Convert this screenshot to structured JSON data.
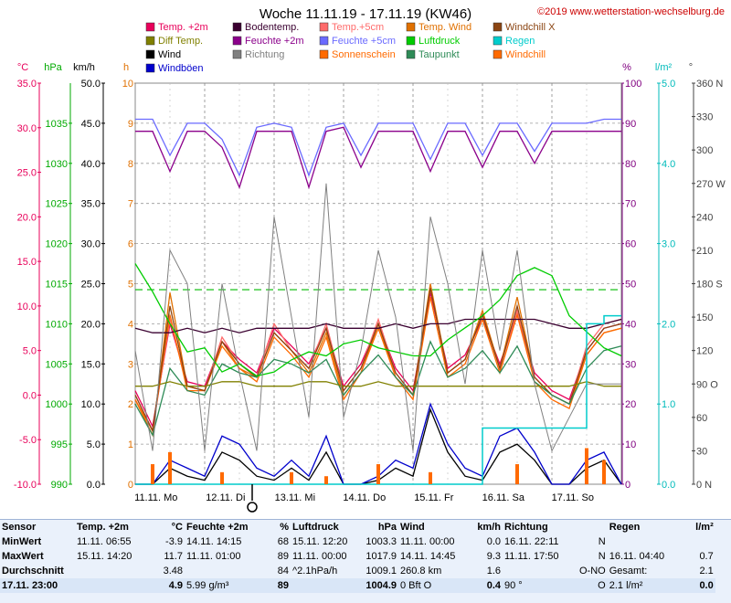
{
  "header": {
    "title": "Woche 11.11.19 - 17.11.19 (KW46)",
    "copyright": "©2019 www.wetterstation-wechselburg.de"
  },
  "legend": [
    {
      "label": "Temp. +2m",
      "color": "#e8005a"
    },
    {
      "label": "Bodentemp.",
      "color": "#3a0030"
    },
    {
      "label": "Temp.+5cm",
      "color": "#ff6b6b"
    },
    {
      "label": "Temp. Wind",
      "color": "#e07000"
    },
    {
      "label": "Windchill X",
      "color": "#8b4513"
    },
    {
      "label": "Diff Temp.",
      "color": "#808000"
    },
    {
      "label": "Feuchte +2m",
      "color": "#8b008b"
    },
    {
      "label": "Feuchte +5cm",
      "color": "#6a6aff"
    },
    {
      "label": "Luftdruck",
      "color": "#00cc00"
    },
    {
      "label": "Regen",
      "color": "#00cccc"
    },
    {
      "label": "Wind",
      "color": "#000000"
    },
    {
      "label": "Richtung",
      "color": "#808080"
    },
    {
      "label": "Sonnenschein",
      "color": "#ff6a00"
    },
    {
      "label": "Taupunkt",
      "color": "#2e8b57"
    },
    {
      "label": "Windchill",
      "color": "#ff6a00"
    },
    {
      "label": "Windböen",
      "color": "#0000cc"
    }
  ],
  "axes": {
    "temp": {
      "unit": "°C",
      "ticks": [
        "35.0",
        "30.0",
        "25.0",
        "20.0",
        "15.0",
        "10.0",
        "5.0",
        "0.0",
        "-5.0",
        "-10.0"
      ],
      "range": [
        -10,
        35
      ],
      "color": "#e8005a"
    },
    "pressure": {
      "unit": "hPa",
      "ticks": [
        "1035",
        "1030",
        "1025",
        "1020",
        "1015",
        "1010",
        "1005",
        "1000",
        "995",
        "990"
      ],
      "range": [
        990,
        1040
      ],
      "color": "#00aa00"
    },
    "wind": {
      "unit": "km/h",
      "ticks": [
        "50.0",
        "45.0",
        "40.0",
        "35.0",
        "30.0",
        "25.0",
        "20.0",
        "15.0",
        "10.0",
        "5.0",
        "0.0"
      ],
      "range": [
        0,
        50
      ],
      "color": "#000000"
    },
    "sun": {
      "unit": "h",
      "ticks": [
        "10",
        "9",
        "8",
        "7",
        "6",
        "5",
        "4",
        "3",
        "2",
        "1",
        "0"
      ],
      "range": [
        0,
        10
      ],
      "color": "#e07000"
    },
    "humidity": {
      "unit": "%",
      "ticks": [
        "100",
        "90",
        "80",
        "70",
        "60",
        "50",
        "40",
        "30",
        "20",
        "10",
        "0"
      ],
      "range": [
        0,
        100
      ],
      "color": "#800080"
    },
    "rain": {
      "unit": "l/m²",
      "ticks": [
        "5.0",
        "4.0",
        "3.0",
        "2.0",
        "1.0",
        "0.0"
      ],
      "range": [
        0,
        5
      ],
      "color": "#00bbbb"
    },
    "direction": {
      "unit": "°",
      "ticks": [
        "360 N",
        "330",
        "300",
        "270 W",
        "240",
        "210",
        "180 S",
        "150",
        "120",
        "90 O",
        "60",
        "30",
        "0 N"
      ],
      "range": [
        0,
        360
      ],
      "color": "#444444"
    }
  },
  "x_labels": [
    "11.11. Mo",
    "12.11. Di",
    "13.11. Mi",
    "14.11. Do",
    "15.11. Fr",
    "16.11. Sa",
    "17.11. So"
  ],
  "chart_data": {
    "type": "line",
    "title": "Woche 11.11.19 - 17.11.19 (KW46)",
    "x": [
      0,
      0.25,
      0.5,
      0.75,
      1,
      1.25,
      1.5,
      1.75,
      2,
      2.25,
      2.5,
      2.75,
      3,
      3.25,
      3.5,
      3.75,
      4,
      4.25,
      4.5,
      4.75,
      5,
      5.25,
      5.5,
      5.75,
      6,
      6.25,
      6.5,
      6.75,
      7
    ],
    "x_unit": "days since 11.11.",
    "series": [
      {
        "name": "Temp. +2m",
        "axis": "temp",
        "color": "#e8005a",
        "values": [
          0.5,
          -3.5,
          8.0,
          1.5,
          1.0,
          6.0,
          4.0,
          2.5,
          7.5,
          5.5,
          3.5,
          7.5,
          1.0,
          3.5,
          8.0,
          3.0,
          0.5,
          11.5,
          3.0,
          4.5,
          8.5,
          3.5,
          9.0,
          2.5,
          0.5,
          -0.5,
          5.0,
          7.5,
          8.0
        ]
      },
      {
        "name": "Temp.+5cm",
        "axis": "temp",
        "color": "#ff6b6b",
        "values": [
          0.0,
          -4.0,
          8.5,
          1.0,
          0.5,
          6.5,
          3.5,
          2.0,
          8.0,
          5.0,
          3.0,
          8.0,
          0.5,
          3.0,
          8.5,
          2.5,
          0.0,
          12.0,
          2.5,
          4.0,
          9.0,
          3.0,
          9.5,
          2.0,
          0.0,
          -1.0,
          5.5,
          8.0,
          8.5
        ]
      },
      {
        "name": "Temp. Wind",
        "axis": "temp",
        "color": "#e07000",
        "values": [
          -0.5,
          -4.5,
          11.5,
          1.0,
          0.5,
          6.0,
          3.0,
          2.0,
          7.0,
          5.0,
          2.5,
          7.0,
          0.0,
          2.5,
          8.0,
          2.0,
          0.0,
          12.5,
          2.5,
          4.0,
          9.5,
          3.0,
          11.0,
          2.0,
          0.0,
          -1.0,
          4.5,
          7.0,
          7.5
        ]
      },
      {
        "name": "Windchill",
        "axis": "temp",
        "color": "#ff6a00",
        "values": [
          -0.5,
          -4.0,
          9.0,
          0.5,
          0.5,
          5.5,
          3.0,
          1.5,
          6.5,
          4.5,
          2.0,
          6.5,
          -0.5,
          2.5,
          7.5,
          2.0,
          -0.5,
          11.0,
          2.0,
          3.5,
          8.5,
          2.5,
          9.0,
          1.5,
          -0.5,
          -1.5,
          4.5,
          7.0,
          7.5
        ]
      },
      {
        "name": "Windchill X",
        "axis": "temp",
        "color": "#8b4513",
        "values": [
          0.0,
          -4.0,
          10.0,
          1.0,
          0.5,
          6.0,
          3.5,
          2.0,
          7.0,
          5.0,
          3.0,
          7.5,
          0.5,
          3.0,
          8.0,
          2.5,
          0.0,
          12.0,
          2.5,
          4.0,
          9.0,
          3.0,
          10.0,
          2.0,
          0.0,
          -1.0,
          5.0,
          7.5,
          8.0
        ]
      },
      {
        "name": "Bodentemp.",
        "axis": "temp",
        "color": "#3a0030",
        "values": [
          7.5,
          7.0,
          7.0,
          7.5,
          7.0,
          7.5,
          7.0,
          7.5,
          7.5,
          7.5,
          7.5,
          8.0,
          7.5,
          7.5,
          7.5,
          8.0,
          7.5,
          8.0,
          8.0,
          8.5,
          8.5,
          8.5,
          8.5,
          8.5,
          8.0,
          7.5,
          7.5,
          8.0,
          8.5
        ]
      },
      {
        "name": "Taupunkt",
        "axis": "temp",
        "color": "#2e8b57",
        "values": [
          -1.0,
          -4.5,
          3.0,
          0.5,
          0.0,
          3.5,
          2.5,
          2.0,
          4.0,
          3.5,
          2.5,
          4.0,
          0.0,
          2.5,
          4.5,
          2.0,
          0.0,
          6.0,
          2.0,
          3.0,
          5.0,
          2.5,
          5.5,
          1.5,
          0.0,
          -1.0,
          3.0,
          5.0,
          5.5
        ]
      },
      {
        "name": "Diff Temp.",
        "axis": "temp",
        "color": "#808000",
        "values": [
          1.0,
          1.0,
          1.5,
          1.0,
          1.0,
          1.5,
          1.5,
          1.0,
          1.0,
          1.0,
          1.5,
          1.5,
          1.0,
          1.0,
          1.5,
          1.0,
          1.0,
          1.0,
          1.0,
          1.0,
          1.0,
          1.0,
          1.0,
          1.0,
          1.0,
          1.0,
          1.5,
          1.0,
          1.0
        ]
      },
      {
        "name": "Feuchte +2m",
        "axis": "humidity",
        "color": "#8b008b",
        "values": [
          88,
          88,
          78,
          88,
          88,
          84,
          74,
          88,
          88,
          88,
          74,
          88,
          89,
          79,
          88,
          88,
          88,
          78,
          88,
          88,
          79,
          88,
          88,
          80,
          88,
          88,
          88,
          88,
          88
        ]
      },
      {
        "name": "Feuchte +5cm",
        "axis": "humidity",
        "color": "#6a6aff",
        "values": [
          91,
          91,
          82,
          90,
          90,
          86,
          77,
          89,
          90,
          89,
          77,
          89,
          90,
          82,
          90,
          90,
          90,
          81,
          90,
          90,
          82,
          90,
          90,
          83,
          90,
          90,
          90,
          91,
          91
        ]
      },
      {
        "name": "Luftdruck",
        "axis": "pressure",
        "color": "#00cc00",
        "values": [
          1017.5,
          1014,
          1010,
          1006.5,
          1007,
          1004,
          1005,
          1003.5,
          1004,
          1005.5,
          1006.5,
          1006,
          1007.5,
          1008,
          1007,
          1006.5,
          1006,
          1006,
          1008,
          1009.5,
          1011,
          1013,
          1016,
          1017,
          1016,
          1011,
          1009,
          1007,
          1006
        ]
      },
      {
        "name": "Wind",
        "axis": "wind",
        "color": "#000000",
        "values": [
          0,
          0,
          2,
          1,
          0.5,
          4,
          3,
          1,
          0.5,
          2,
          0.5,
          4,
          0,
          0,
          0.5,
          2,
          1,
          9.3,
          4,
          1,
          0.5,
          4,
          5,
          3,
          0,
          0,
          2,
          3,
          0
        ]
      },
      {
        "name": "Windböen",
        "axis": "wind",
        "color": "#0000cc",
        "values": [
          0,
          0,
          3,
          2,
          1,
          6,
          5,
          2,
          1,
          3,
          1,
          6,
          0,
          0,
          1,
          3,
          2,
          10,
          5,
          2,
          1,
          6,
          7,
          4,
          0,
          0,
          3,
          4,
          0
        ]
      },
      {
        "name": "Richtung",
        "axis": "direction",
        "color": "#808080",
        "values": [
          120,
          30,
          210,
          180,
          30,
          180,
          100,
          30,
          240,
          150,
          60,
          270,
          60,
          120,
          210,
          150,
          30,
          240,
          180,
          90,
          210,
          120,
          210,
          90,
          30,
          60,
          90,
          90,
          90
        ]
      },
      {
        "name": "Regen",
        "axis": "rain",
        "color": "#00cccc",
        "values": [
          0,
          0,
          0,
          0,
          0,
          0,
          0,
          0,
          0,
          0,
          0,
          0,
          0,
          0,
          0,
          0,
          0,
          0,
          0,
          0,
          0.7,
          0.7,
          0.7,
          0.7,
          0.7,
          0.7,
          2.0,
          2.1,
          2.1
        ]
      },
      {
        "name": "Sonnenschein",
        "axis": "sun",
        "color": "#ff6a00",
        "values": [
          0,
          0.5,
          0.8,
          0,
          0,
          0.3,
          0,
          0,
          0,
          0.3,
          0,
          0.2,
          0,
          0,
          0.5,
          0,
          0,
          0.3,
          0,
          0,
          0,
          0,
          0.5,
          0,
          0,
          0,
          0.9,
          0.6,
          0
        ]
      }
    ],
    "reference_line": {
      "axis": "humidity",
      "value": 48.5,
      "color": "#00bb00"
    }
  },
  "summary": {
    "headers": [
      "Sensor",
      "Temp. +2m",
      "°C",
      "Feuchte +2m",
      "%",
      "Luftdruck",
      "hPa",
      "Wind",
      "km/h",
      "Richtung",
      "",
      "Regen",
      "l/m²"
    ],
    "rows": [
      [
        "MinWert",
        "11.11. 06:55",
        "-3.9",
        "14.11. 14:15",
        "68",
        "15.11. 12:20",
        "1003.3",
        "11.11. 00:00",
        "0.0",
        "16.11. 22:11",
        "N",
        "",
        ""
      ],
      [
        "MaxWert",
        "15.11. 14:20",
        "11.7",
        "11.11. 01:00",
        "89",
        "11.11. 00:00",
        "1017.9",
        "14.11. 14:45",
        "9.3",
        "11.11. 17:50",
        "N",
        "16.11. 04:40",
        "0.7"
      ],
      [
        "Durchschnitt",
        "",
        "3.48",
        "",
        "84",
        "^2.1hPa/h",
        "1009.1",
        "260.8 km",
        "1.6",
        "",
        "O-NO",
        "Gesamt:",
        "2.1"
      ],
      [
        "17.11. 23:00",
        "",
        "4.9",
        "5.99 g/m³",
        "89",
        "",
        "1004.9",
        "0 Bft O",
        "0.4",
        "90 °",
        "O",
        "2.1 l/m²",
        "0.0"
      ]
    ]
  }
}
